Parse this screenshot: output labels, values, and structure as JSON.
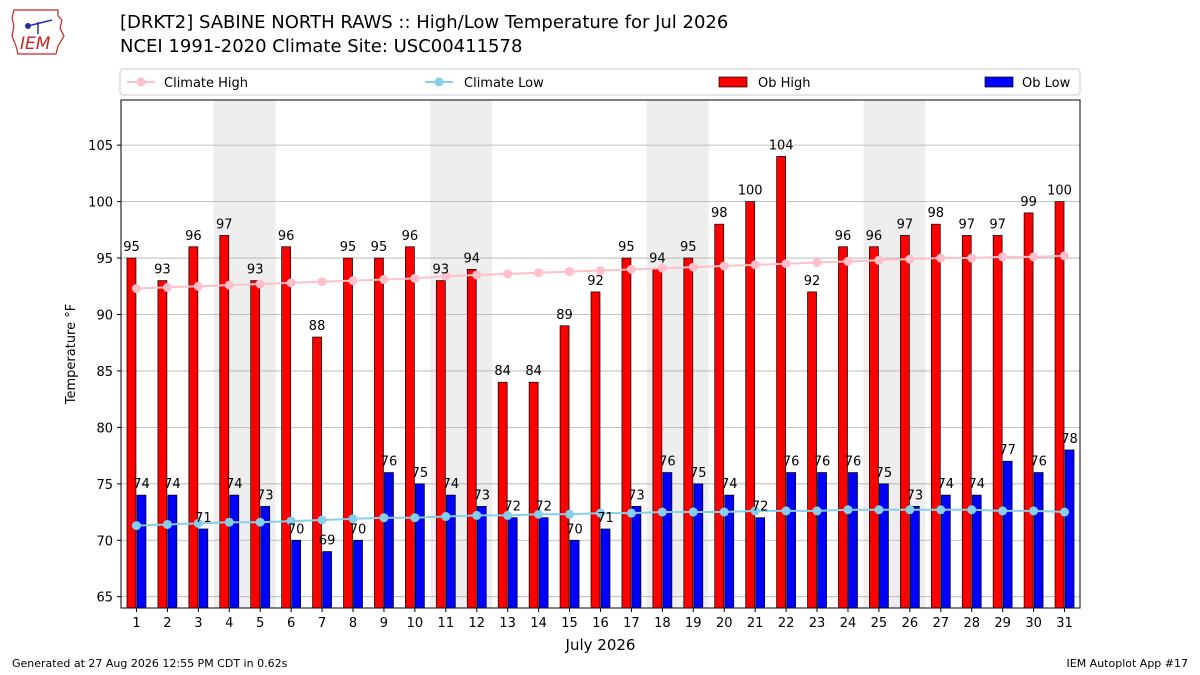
{
  "titles": {
    "line1": "[DRKT2] SABINE NORTH RAWS :: High/Low Temperature for Jul 2026",
    "line2": "NCEI 1991-2020 Climate Site: USC00411578"
  },
  "logo_text": "IEM",
  "footer": {
    "left": "Generated at 27 Aug 2026 12:55 PM CDT in 0.62s",
    "right": "IEM Autoplot App #17"
  },
  "colors": {
    "ob_high": "#ff0000",
    "ob_low": "#0000ff",
    "climate_high": "#ffc0cb",
    "climate_low": "#87ceeb",
    "weekend_shade": "#eeeeee",
    "logo": "#cc2222"
  },
  "chart_data": {
    "type": "bar",
    "xlabel": "July 2026",
    "ylabel": "Temperature °F",
    "ylim": [
      64,
      109
    ],
    "yticks": [
      65,
      70,
      75,
      80,
      85,
      90,
      95,
      100,
      105
    ],
    "grid": "horizontal",
    "legend_position": "top",
    "categories": [
      "1",
      "2",
      "3",
      "4",
      "5",
      "6",
      "7",
      "8",
      "9",
      "10",
      "11",
      "12",
      "13",
      "14",
      "15",
      "16",
      "17",
      "18",
      "19",
      "20",
      "21",
      "22",
      "23",
      "24",
      "25",
      "26",
      "27",
      "28",
      "29",
      "30",
      "31"
    ],
    "shaded_weekends": [
      [
        4,
        5
      ],
      [
        11,
        12
      ],
      [
        18,
        19
      ],
      [
        25,
        26
      ]
    ],
    "series": [
      {
        "name": "Ob High",
        "kind": "bar",
        "values": [
          95,
          93,
          96,
          97,
          93,
          96,
          88,
          95,
          95,
          96,
          93,
          94,
          84,
          84,
          89,
          92,
          95,
          94,
          95,
          98,
          100,
          104,
          92,
          96,
          96,
          97,
          98,
          97,
          97,
          99,
          100
        ]
      },
      {
        "name": "Ob Low",
        "kind": "bar",
        "values": [
          74,
          74,
          71,
          74,
          73,
          70,
          69,
          70,
          76,
          75,
          74,
          73,
          72,
          72,
          70,
          71,
          73,
          76,
          75,
          74,
          72,
          76,
          76,
          76,
          75,
          73,
          74,
          74,
          77,
          76,
          78
        ]
      },
      {
        "name": "Climate High",
        "kind": "line",
        "values": [
          92.3,
          92.4,
          92.5,
          92.6,
          92.7,
          92.8,
          92.9,
          93.0,
          93.1,
          93.2,
          93.4,
          93.5,
          93.6,
          93.7,
          93.8,
          93.9,
          94.0,
          94.1,
          94.2,
          94.3,
          94.4,
          94.5,
          94.6,
          94.7,
          94.8,
          94.9,
          95.0,
          95.0,
          95.1,
          95.1,
          95.2
        ]
      },
      {
        "name": "Climate Low",
        "kind": "line",
        "values": [
          71.3,
          71.4,
          71.5,
          71.6,
          71.6,
          71.7,
          71.8,
          71.9,
          72.0,
          72.0,
          72.1,
          72.2,
          72.2,
          72.3,
          72.3,
          72.4,
          72.4,
          72.5,
          72.5,
          72.5,
          72.6,
          72.6,
          72.6,
          72.7,
          72.7,
          72.7,
          72.7,
          72.7,
          72.6,
          72.6,
          72.5
        ]
      }
    ],
    "legend": [
      "Climate High",
      "Climate Low",
      "Ob High",
      "Ob Low"
    ]
  }
}
